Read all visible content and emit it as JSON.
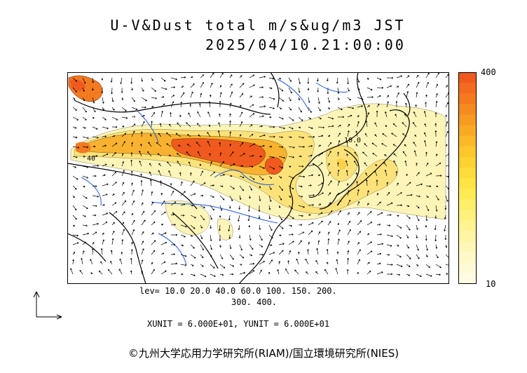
{
  "title": {
    "line1": "U-V&Dust total m/s&ug/m3 JST",
    "line2": "2025/04/10.21:00:00"
  },
  "colorbar": {
    "max_label": "400",
    "min_label": "10",
    "colors": [
      "#f05a1e",
      "#f26b1e",
      "#f47a1f",
      "#f58a20",
      "#f79a22",
      "#f9aa25",
      "#fbb928",
      "#fcc72c",
      "#fdd232",
      "#fedc3b",
      "#fee445",
      "#ffea56",
      "#ffee6a",
      "#fff17d",
      "#fff392",
      "#fff5a5",
      "#fff7b7",
      "#fff9c8",
      "#fffad6",
      "#fffce3"
    ]
  },
  "levels": {
    "line1": "lev= 10.0 20.0 40.0 60.0 100. 150. 200.",
    "line2": "300. 400."
  },
  "contour_labels": {
    "a": "40",
    "b": "10.0"
  },
  "units": "XUNIT = 6.000E+01, YUNIT = 6.000E+01",
  "copyright": "©九州大学応用力学研究所(RIAM)/国立環境研究所(NIES)",
  "colors": {
    "land_line": "#000000",
    "river": "#1e5adc",
    "dust_low": "#fdf3b0",
    "dust_mid": "#fbd04a",
    "dust_high": "#f47a20",
    "dust_peak": "#f05a1e"
  }
}
